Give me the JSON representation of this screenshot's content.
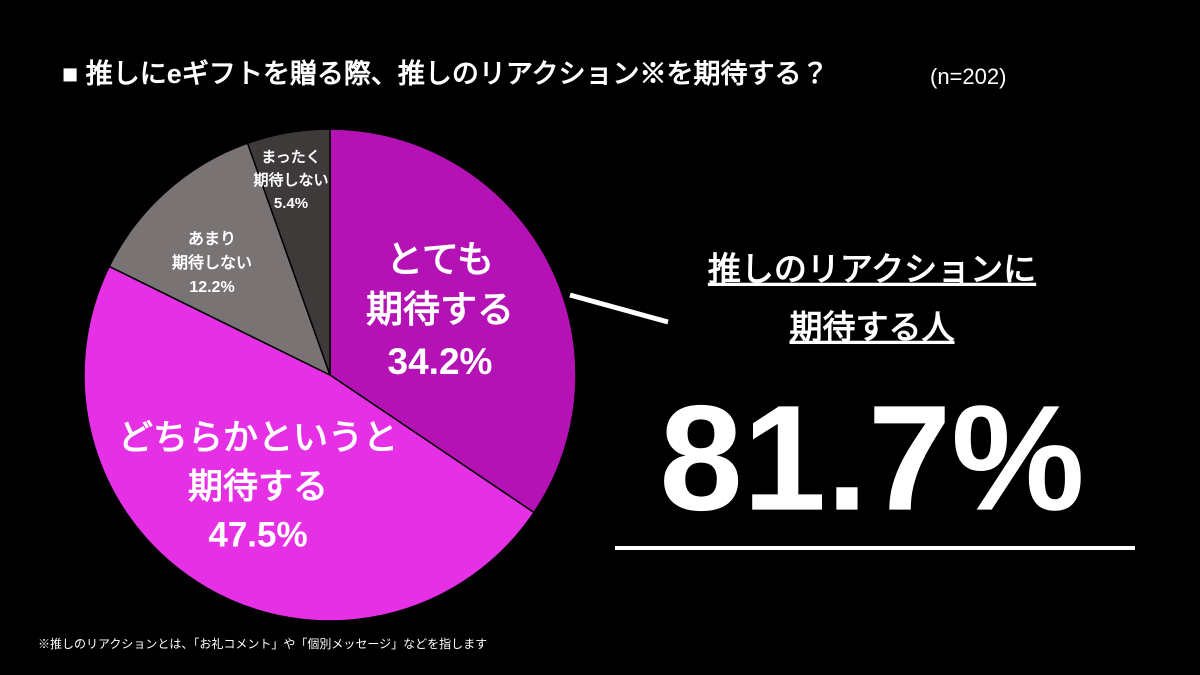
{
  "chart_data": {
    "type": "pie",
    "title": "■ 推しにeギフトを贈る際、推しのリアクション※を期待する？",
    "subtitle": "(n=202)",
    "categories": [
      [
        "とても",
        "期待する"
      ],
      [
        "どちらかというと",
        "期待する"
      ],
      [
        "あまり",
        "期待しない"
      ],
      [
        "まったく",
        "期待しない"
      ]
    ],
    "values": [
      34.2,
      47.5,
      12.2,
      5.4
    ],
    "value_labels": [
      "34.2%",
      "47.5%",
      "12.2%",
      "5.4%"
    ],
    "colors": [
      "#b412b4",
      "#e630e6",
      "#7a7373",
      "#3f3a3a"
    ],
    "annotation": {
      "lines": [
        "推しのリアクションに",
        "期待する人"
      ],
      "value": 81.7,
      "label": "81.7%"
    },
    "footnote": "※推しのリアクションとは、「お礼コメント」や「個別メッセージ」などを指します"
  }
}
